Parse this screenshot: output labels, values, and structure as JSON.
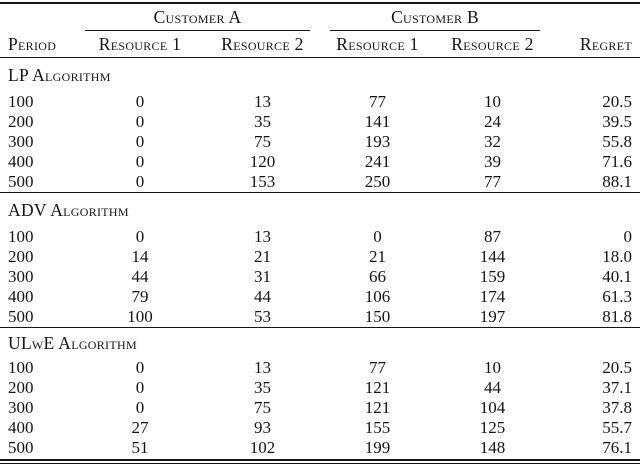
{
  "page": {
    "background_color": "#ffffff",
    "text_color": "#141414"
  },
  "table": {
    "spanners": [
      {
        "label": "Customer A"
      },
      {
        "label": "Customer B"
      }
    ],
    "columns": {
      "period": "Period",
      "a_r1": "Resource 1",
      "a_r2": "Resource 2",
      "b_r1": "Resource 1",
      "b_r2": "Resource 2",
      "regret": "Regret"
    },
    "sections": [
      {
        "label": "LP Algorithm",
        "rows": [
          [
            "100",
            "0",
            "13",
            "77",
            "10",
            "20.5"
          ],
          [
            "200",
            "0",
            "35",
            "141",
            "24",
            "39.5"
          ],
          [
            "300",
            "0",
            "75",
            "193",
            "32",
            "55.8"
          ],
          [
            "400",
            "0",
            "120",
            "241",
            "39",
            "71.6"
          ],
          [
            "500",
            "0",
            "153",
            "250",
            "77",
            "88.1"
          ]
        ]
      },
      {
        "label": "ADV Algorithm",
        "rows": [
          [
            "100",
            "0",
            "13",
            "0",
            "87",
            "0"
          ],
          [
            "200",
            "14",
            "21",
            "21",
            "144",
            "18.0"
          ],
          [
            "300",
            "44",
            "31",
            "66",
            "159",
            "40.1"
          ],
          [
            "400",
            "79",
            "44",
            "106",
            "174",
            "61.3"
          ],
          [
            "500",
            "100",
            "53",
            "150",
            "197",
            "81.8"
          ]
        ]
      },
      {
        "label": "ULwE Algorithm",
        "rows": [
          [
            "100",
            "0",
            "13",
            "77",
            "10",
            "20.5"
          ],
          [
            "200",
            "0",
            "35",
            "121",
            "44",
            "37.1"
          ],
          [
            "300",
            "0",
            "75",
            "121",
            "104",
            "37.8"
          ],
          [
            "400",
            "27",
            "93",
            "155",
            "125",
            "55.7"
          ],
          [
            "500",
            "51",
            "102",
            "199",
            "148",
            "76.1"
          ]
        ]
      }
    ]
  },
  "chart_data": {
    "type": "table",
    "title": "",
    "column_groups": [
      "",
      "Customer A",
      "Customer A",
      "Customer B",
      "Customer B",
      ""
    ],
    "columns": [
      "Period",
      "Resource 1",
      "Resource 2",
      "Resource 1",
      "Resource 2",
      "Regret"
    ],
    "sections": [
      {
        "label": "LP Algorithm",
        "rows": [
          [
            100,
            0,
            13,
            77,
            10,
            20.5
          ],
          [
            200,
            0,
            35,
            141,
            24,
            39.5
          ],
          [
            300,
            0,
            75,
            193,
            32,
            55.8
          ],
          [
            400,
            0,
            120,
            241,
            39,
            71.6
          ],
          [
            500,
            0,
            153,
            250,
            77,
            88.1
          ]
        ]
      },
      {
        "label": "ADV Algorithm",
        "rows": [
          [
            100,
            0,
            13,
            0,
            87,
            0
          ],
          [
            200,
            14,
            21,
            21,
            144,
            18.0
          ],
          [
            300,
            44,
            31,
            66,
            159,
            40.1
          ],
          [
            400,
            79,
            44,
            106,
            174,
            61.3
          ],
          [
            500,
            100,
            53,
            150,
            197,
            81.8
          ]
        ]
      },
      {
        "label": "ULwE Algorithm",
        "rows": [
          [
            100,
            0,
            13,
            77,
            10,
            20.5
          ],
          [
            200,
            0,
            35,
            121,
            44,
            37.1
          ],
          [
            300,
            0,
            75,
            121,
            104,
            37.8
          ],
          [
            400,
            27,
            93,
            155,
            125,
            55.7
          ],
          [
            500,
            51,
            102,
            199,
            148,
            76.1
          ]
        ]
      }
    ]
  }
}
